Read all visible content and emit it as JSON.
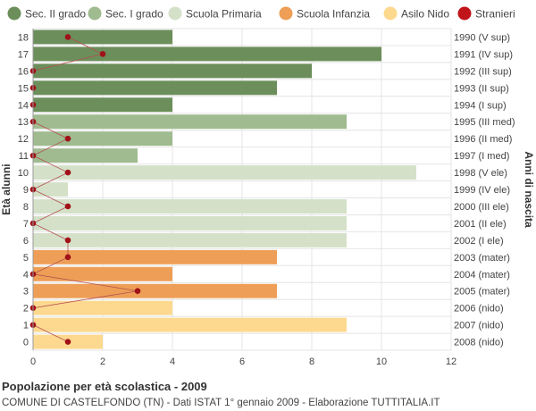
{
  "chart_data": {
    "type": "bar",
    "orientation": "horizontal",
    "title": "Popolazione per età scolastica - 2009",
    "subtitle": "COMUNE DI CASTELFONDO (TN) - Dati ISTAT 1° gennaio 2009 - Elaborazione TUTTITALIA.IT",
    "ylabel": "Età alunni",
    "ylabel_right": "Anni di nascita",
    "xlim": [
      0,
      12
    ],
    "xticks": [
      "0",
      "2",
      "4",
      "6",
      "8",
      "10",
      "12"
    ],
    "grid": true,
    "legend": {
      "position": "top",
      "items": [
        {
          "label": "Sec. II grado",
          "color": "#6b8e5a"
        },
        {
          "label": "Sec. I grado",
          "color": "#9fbb8f"
        },
        {
          "label": "Scuola Primaria",
          "color": "#d4e1c8"
        },
        {
          "label": "Scuola Infanzia",
          "color": "#ee9e56"
        },
        {
          "label": "Asilo Nido",
          "color": "#fdd98f"
        },
        {
          "label": "Stranieri",
          "color": "#c0141b"
        }
      ]
    },
    "rows": [
      {
        "age": "18",
        "year": "1990 (V sup)",
        "value": 4,
        "stranieri": 1,
        "group": 0
      },
      {
        "age": "17",
        "year": "1991 (IV sup)",
        "value": 10,
        "stranieri": 2,
        "group": 0
      },
      {
        "age": "16",
        "year": "1992 (III sup)",
        "value": 8,
        "stranieri": 0,
        "group": 0
      },
      {
        "age": "15",
        "year": "1993 (II sup)",
        "value": 7,
        "stranieri": 0,
        "group": 0
      },
      {
        "age": "14",
        "year": "1994 (I sup)",
        "value": 4,
        "stranieri": 0,
        "group": 0
      },
      {
        "age": "13",
        "year": "1995 (III med)",
        "value": 9,
        "stranieri": 0,
        "group": 1
      },
      {
        "age": "12",
        "year": "1996 (II med)",
        "value": 4,
        "stranieri": 1,
        "group": 1
      },
      {
        "age": "11",
        "year": "1997 (I med)",
        "value": 3,
        "stranieri": 0,
        "group": 1
      },
      {
        "age": "10",
        "year": "1998 (V ele)",
        "value": 11,
        "stranieri": 1,
        "group": 2
      },
      {
        "age": "9",
        "year": "1999 (IV ele)",
        "value": 1,
        "stranieri": 0,
        "group": 2
      },
      {
        "age": "8",
        "year": "2000 (III ele)",
        "value": 9,
        "stranieri": 1,
        "group": 2
      },
      {
        "age": "7",
        "year": "2001 (II ele)",
        "value": 9,
        "stranieri": 0,
        "group": 2
      },
      {
        "age": "6",
        "year": "2002 (I ele)",
        "value": 9,
        "stranieri": 1,
        "group": 2
      },
      {
        "age": "5",
        "year": "2003 (mater)",
        "value": 7,
        "stranieri": 1,
        "group": 3
      },
      {
        "age": "4",
        "year": "2004 (mater)",
        "value": 4,
        "stranieri": 0,
        "group": 3
      },
      {
        "age": "3",
        "year": "2005 (mater)",
        "value": 7,
        "stranieri": 3,
        "group": 3
      },
      {
        "age": "2",
        "year": "2006 (nido)",
        "value": 4,
        "stranieri": 0,
        "group": 4
      },
      {
        "age": "1",
        "year": "2007 (nido)",
        "value": 9,
        "stranieri": 0,
        "group": 4
      },
      {
        "age": "0",
        "year": "2008 (nido)",
        "value": 2,
        "stranieri": 1,
        "group": 4
      }
    ]
  }
}
